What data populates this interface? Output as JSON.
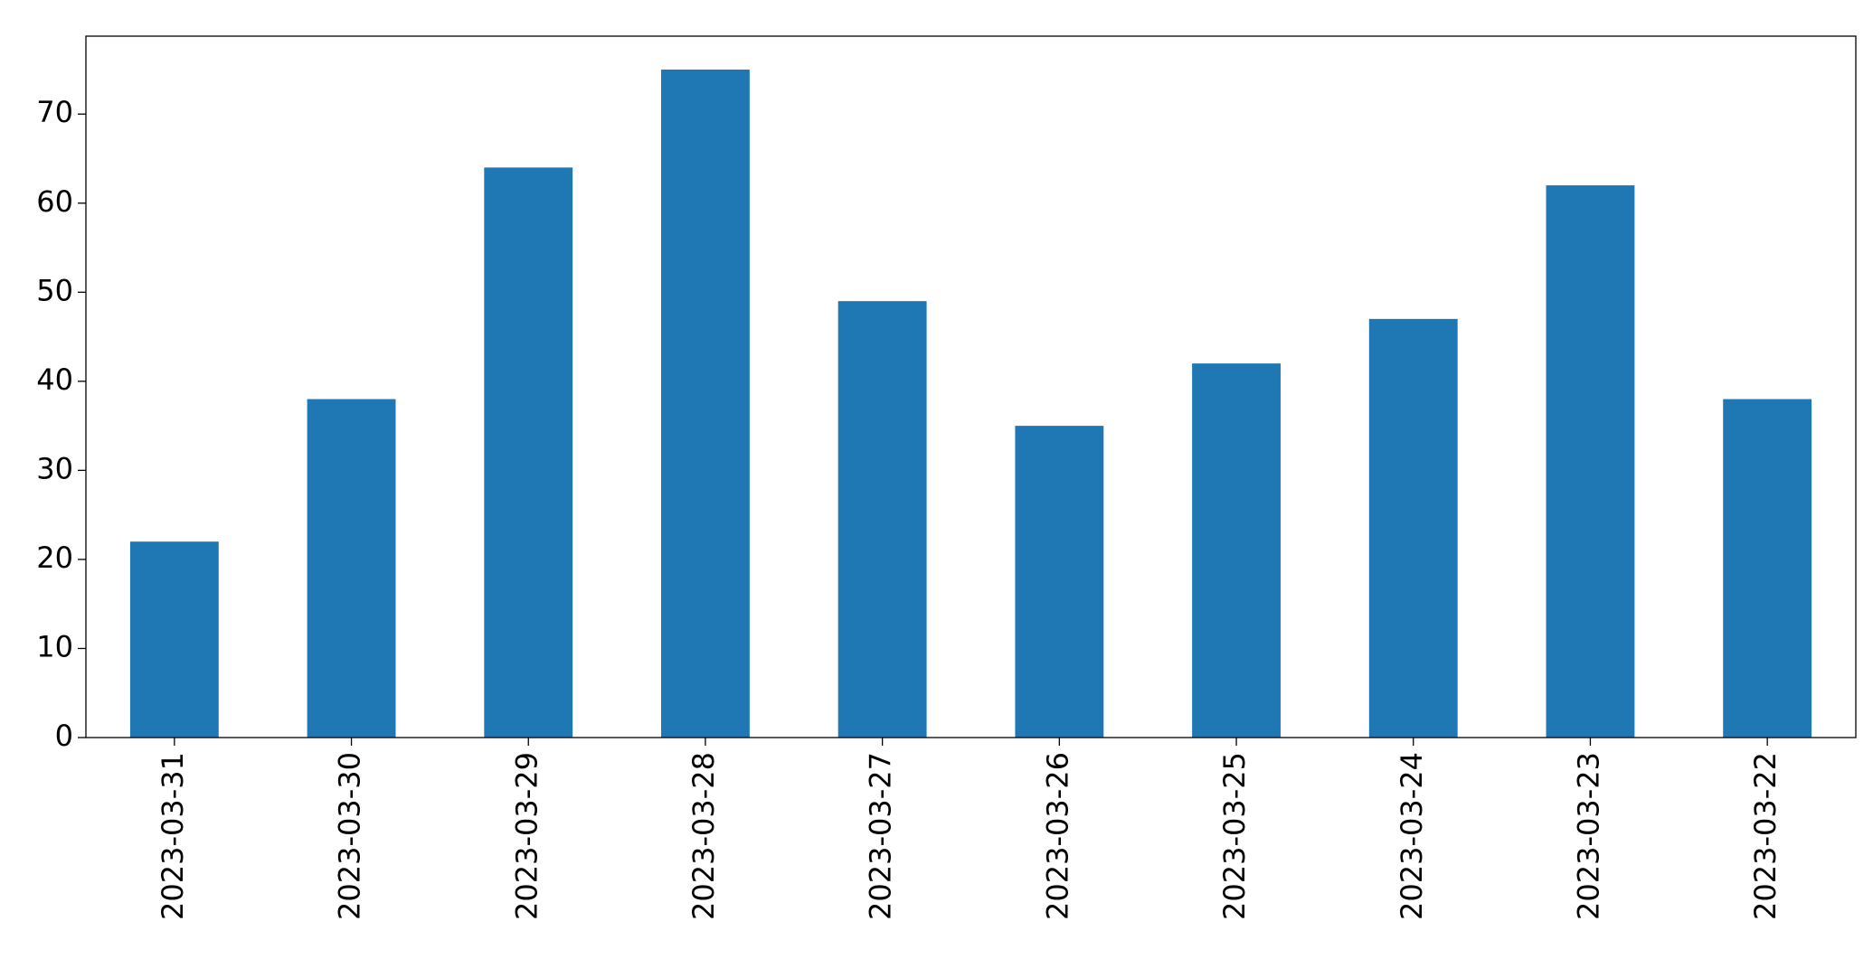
{
  "chart_data": {
    "type": "bar",
    "categories": [
      "2023-03-31",
      "2023-03-30",
      "2023-03-29",
      "2023-03-28",
      "2023-03-27",
      "2023-03-26",
      "2023-03-25",
      "2023-03-24",
      "2023-03-23",
      "2023-03-22"
    ],
    "values": [
      22,
      38,
      64,
      75,
      49,
      35,
      42,
      47,
      62,
      38
    ],
    "color": "#1f77b4",
    "ylim": [
      0,
      78.75
    ],
    "yticks": [
      0,
      10,
      20,
      30,
      40,
      50,
      60,
      70
    ],
    "grid": false
  }
}
